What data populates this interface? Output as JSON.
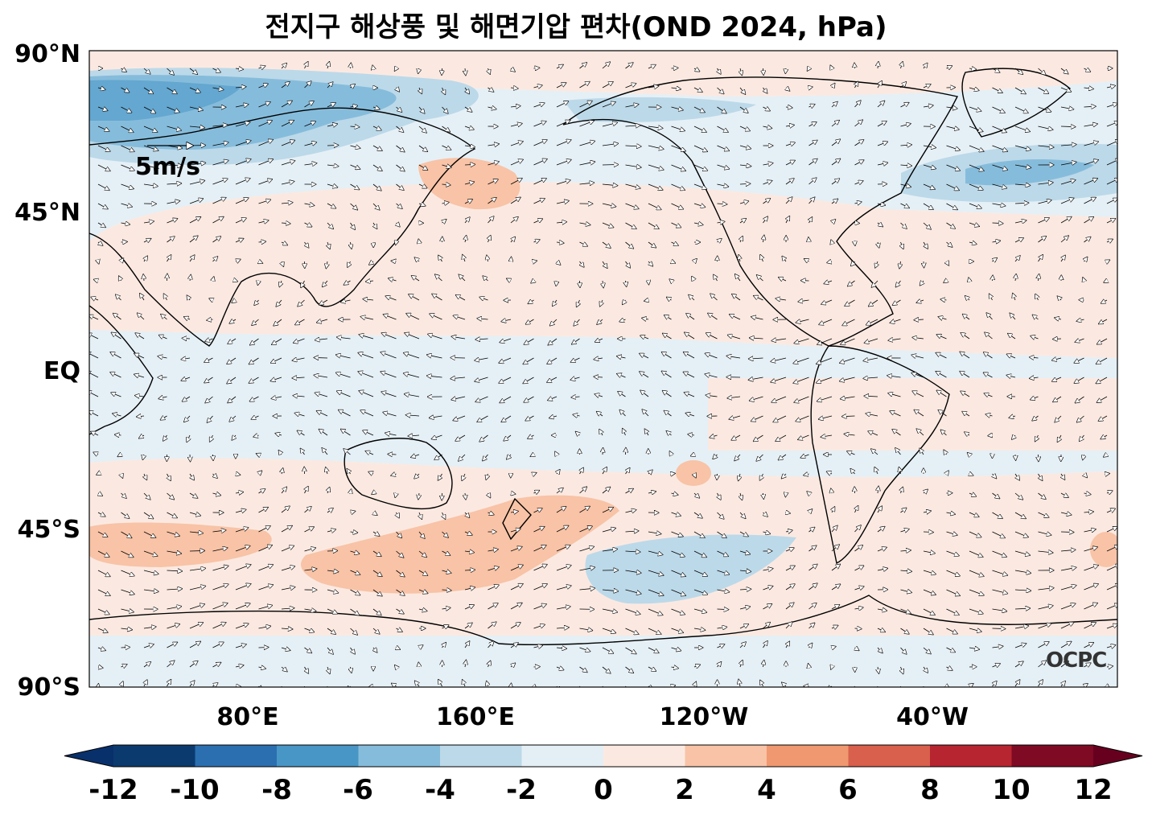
{
  "title": "전지구 해상풍 및 해면기압 편차(OND 2024, hPa)",
  "lat_labels": [
    "90°N",
    "45°N",
    "EQ",
    "45°S",
    "90°S"
  ],
  "lon_labels": [
    "80°E",
    "160°E",
    "120°W",
    "40°W"
  ],
  "scale_arrow": {
    "label": "5m/s",
    "magnitude_ms": 5
  },
  "credit": "OCPC",
  "colorbar": {
    "ticks": [
      "-12",
      "-10",
      "-8",
      "-6",
      "-4",
      "-2",
      "0",
      "2",
      "4",
      "6",
      "8",
      "10",
      "12"
    ],
    "colors": [
      "#0b3a6e",
      "#2b6fb0",
      "#4896c6",
      "#86bcdb",
      "#bcd9e9",
      "#e4eff5",
      "#fbe9e1",
      "#f8c3a6",
      "#f0986f",
      "#d9604c",
      "#b72530",
      "#7f0a24"
    ],
    "extend_low_color": "#08306b",
    "extend_high_color": "#67001f"
  },
  "colors": {
    "ocean_background": "#e5f0f6",
    "land_outline": "#000000"
  }
}
